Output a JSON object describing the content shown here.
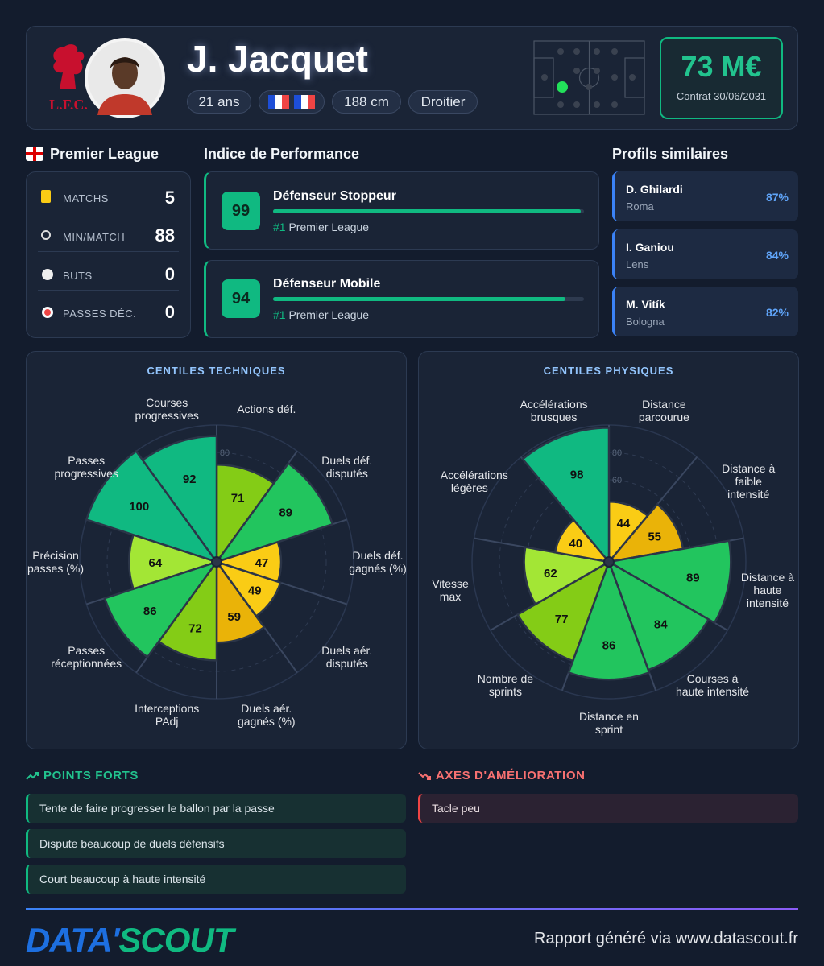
{
  "header": {
    "club": "L.F.C.",
    "name": "J. Jacquet",
    "tags": [
      "21 ans",
      "188 cm",
      "Droitier"
    ],
    "value": "73 M€",
    "contract": "Contrat 30/06/2031"
  },
  "league": {
    "title": "Premier League",
    "stats": [
      {
        "label": "MATCHS",
        "value": 5
      },
      {
        "label": "MIN/MATCH",
        "value": 88
      },
      {
        "label": "BUTS",
        "value": 0
      },
      {
        "label": "PASSES DÉC.",
        "value": 0
      }
    ]
  },
  "performance": {
    "title": "Indice de Performance",
    "bar_range": [
      0,
      100
    ],
    "items": [
      {
        "score": 99,
        "role": "Défenseur Stoppeur",
        "rank": "#1",
        "league": "Premier League"
      },
      {
        "score": 94,
        "role": "Défenseur Mobile",
        "rank": "#1",
        "league": "Premier League"
      }
    ]
  },
  "similar": {
    "title": "Profils similaires",
    "items": [
      {
        "name": "D. Ghilardi",
        "club": "Roma",
        "match": "87%"
      },
      {
        "name": "I. Ganiou",
        "club": "Lens",
        "match": "84%"
      },
      {
        "name": "M. Vitík",
        "club": "Bologna",
        "match": "82%"
      }
    ]
  },
  "chart_data": [
    {
      "type": "polar-area",
      "title": "CENTILES TECHNIQUES",
      "categories": [
        "Actions déf.",
        "Duels déf. disputés",
        "Duels déf. gagnés (%)",
        "Duels aér. disputés",
        "Duels aér. gagnés (%)",
        "Interceptions PAdj",
        "Passes réceptionnées",
        "Précision passes (%)",
        "Passes progressives",
        "Courses progressives"
      ],
      "values": [
        71,
        89,
        47,
        49,
        59,
        72,
        86,
        64,
        100,
        92
      ],
      "colors": [
        "#84cc16",
        "#22c55e",
        "#facc15",
        "#facc15",
        "#eab308",
        "#84cc16",
        "#22c55e",
        "#a3e635",
        "#10b981",
        "#10b981"
      ],
      "rlim": [
        0,
        100
      ],
      "rticks": [
        80
      ]
    },
    {
      "type": "polar-area",
      "title": "CENTILES PHYSIQUES",
      "categories": [
        "Distance parcourue",
        "Distance à faible intensité",
        "Distance à haute intensité",
        "Courses à haute intensité",
        "Distance en sprint",
        "Nombre de sprints",
        "Vitesse max",
        "Accélérations légères",
        "Accélérations brusques"
      ],
      "values": [
        44,
        55,
        89,
        84,
        86,
        77,
        62,
        40,
        98
      ],
      "colors": [
        "#facc15",
        "#eab308",
        "#22c55e",
        "#22c55e",
        "#22c55e",
        "#84cc16",
        "#a3e635",
        "#facc15",
        "#10b981"
      ],
      "rlim": [
        0,
        100
      ],
      "rticks": [
        60,
        80
      ]
    }
  ],
  "strengths": {
    "title": "POINTS FORTS",
    "items": [
      "Tente de faire progresser le ballon par la passe",
      "Dispute beaucoup de duels défensifs",
      "Court beaucoup à haute intensité"
    ]
  },
  "improvements": {
    "title": "AXES D'AMÉLIORATION",
    "items": [
      "Tacle peu"
    ]
  },
  "footer": {
    "logo": [
      "DATA'",
      "SCOUT"
    ],
    "text": "Rapport généré via www.datascout.fr"
  }
}
